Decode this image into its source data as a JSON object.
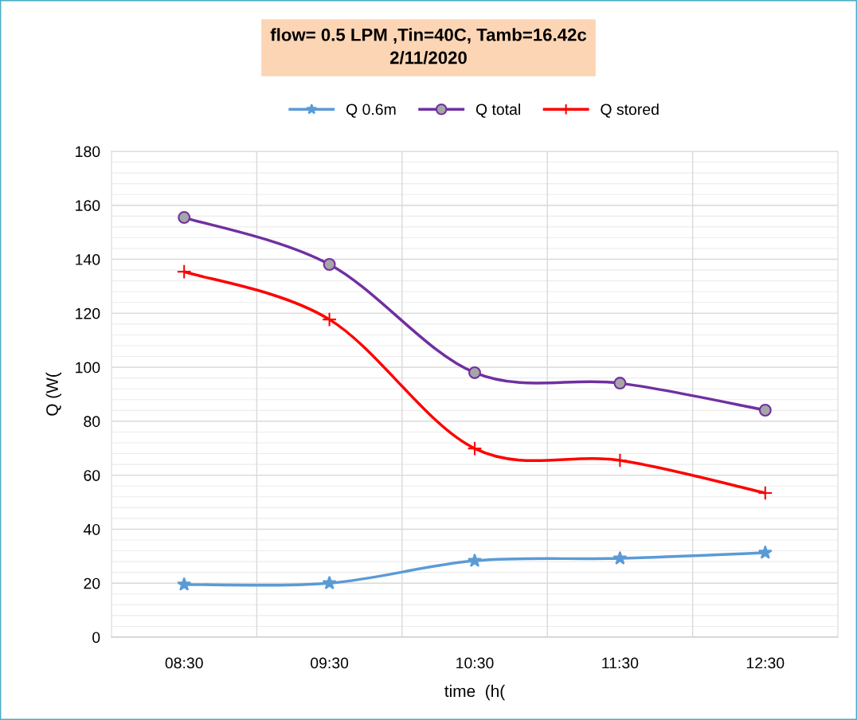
{
  "chart_data": {
    "type": "line",
    "title": "flow= 0.5 LPM ,Tin=40C, Tamb=16.42c\n2/11/2020",
    "xlabel": "time  (h(",
    "ylabel": "Q (W(",
    "categories": [
      "08:30",
      "09:30",
      "10:30",
      "11:30",
      "12:30"
    ],
    "series": [
      {
        "name": "Q 0.6m",
        "color": "#5b9bd5",
        "marker": "star",
        "values": [
          19.5,
          20,
          28.3,
          29.2,
          31.3
        ]
      },
      {
        "name": "Q total",
        "color": "#7030a0",
        "marker": "circle",
        "values": [
          155.5,
          138.1,
          98,
          94.1,
          84.1
        ]
      },
      {
        "name": "Q stored",
        "color": "#ff0000",
        "marker": "cross",
        "values": [
          135.4,
          117.7,
          69.9,
          65.5,
          53.4
        ]
      }
    ],
    "ylim": [
      0,
      180
    ],
    "yticks": [
      0,
      20,
      40,
      60,
      80,
      100,
      120,
      140,
      160,
      180
    ],
    "grid": true,
    "legend": "top",
    "line_style": "solid"
  }
}
